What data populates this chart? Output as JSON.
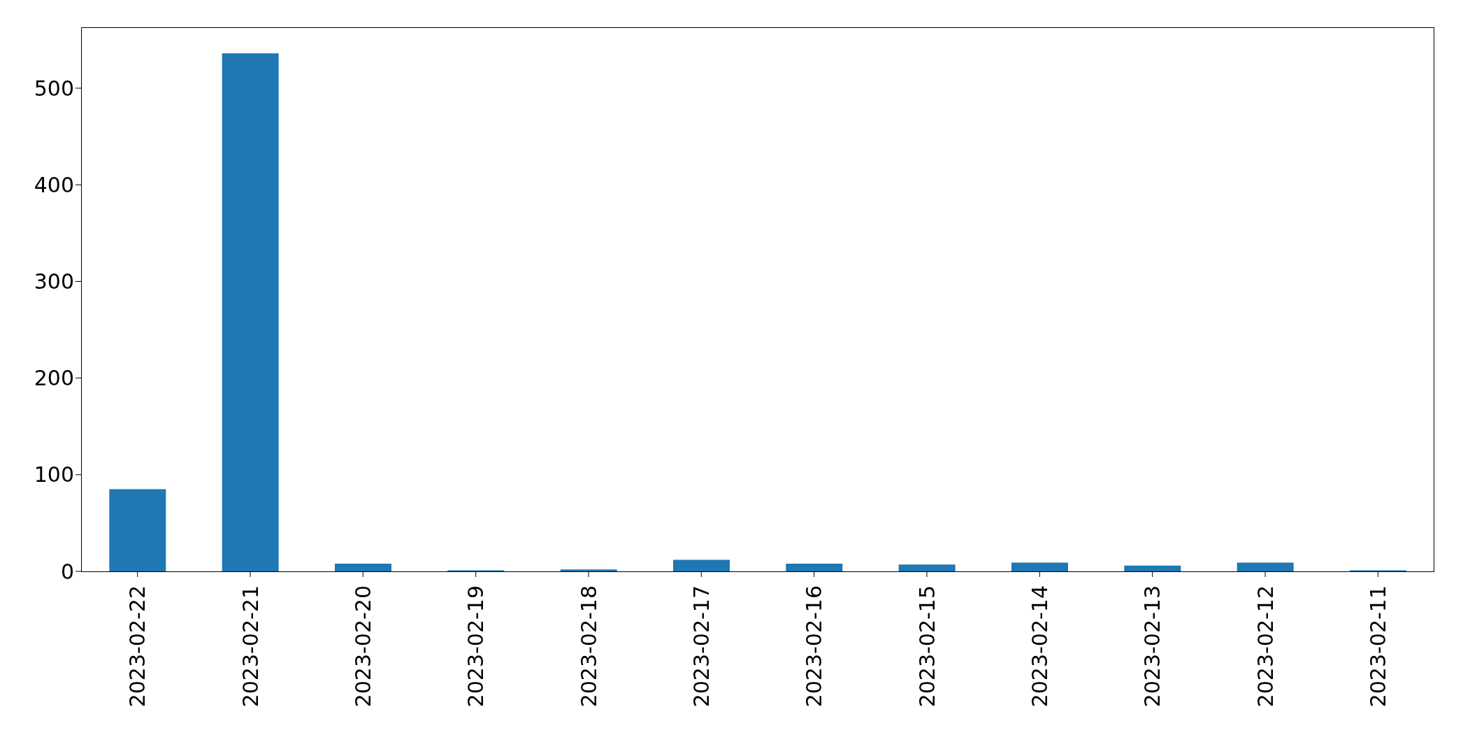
{
  "chart_data": {
    "type": "bar",
    "categories": [
      "2023-02-22",
      "2023-02-21",
      "2023-02-20",
      "2023-02-19",
      "2023-02-18",
      "2023-02-17",
      "2023-02-16",
      "2023-02-15",
      "2023-02-14",
      "2023-02-13",
      "2023-02-12",
      "2023-02-11"
    ],
    "values": [
      85,
      536,
      8,
      1,
      2,
      12,
      8,
      7,
      9,
      6,
      9,
      1
    ],
    "color": "#1f77b4",
    "ylim": [
      0,
      563
    ],
    "yticks": [
      0,
      100,
      200,
      300,
      400,
      500
    ],
    "grid": false,
    "legend": false
  }
}
